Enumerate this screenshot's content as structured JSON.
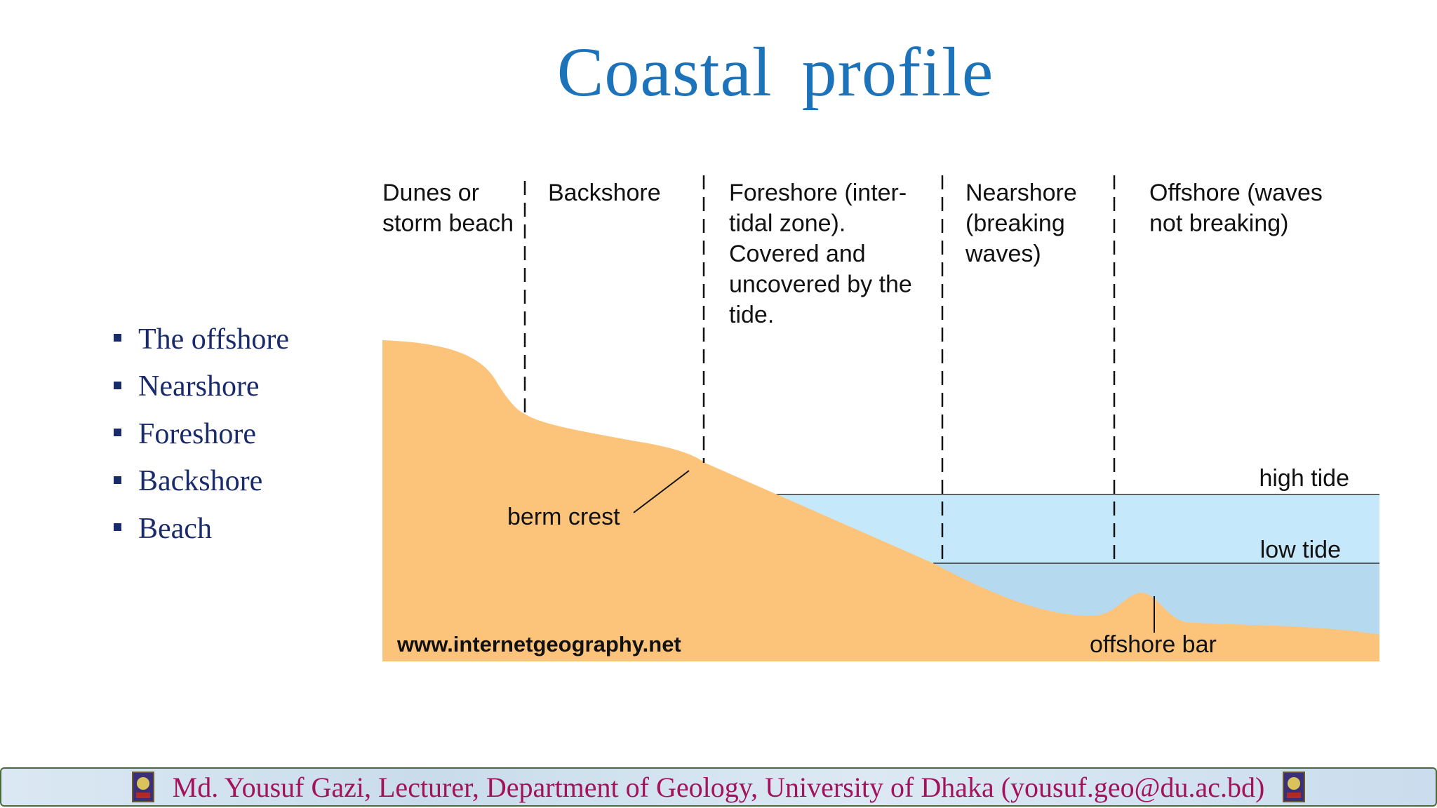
{
  "title": "Coastal  profile",
  "bullets": [
    "The offshore",
    "Nearshore",
    "Foreshore",
    "Backshore",
    "Beach"
  ],
  "diagram": {
    "zones": [
      [
        "Dunes or",
        "storm beach"
      ],
      [
        "Backshore"
      ],
      [
        "Foreshore (inter-",
        "tidal zone).",
        "Covered and",
        "uncovered by the",
        "tide."
      ],
      [
        "Nearshore",
        "(breaking",
        "waves)"
      ],
      [
        "Offshore (waves",
        "not breaking)"
      ]
    ],
    "high_tide_label": "high tide",
    "low_tide_label": "low tide",
    "berm_crest_label": "berm crest",
    "offshore_bar_label": "offshore bar",
    "credit": "www.internetgeography.net",
    "colors": {
      "land": "#fcc47b",
      "upper_water": "#c5e8fb",
      "lower_water": "#b5d9ee"
    }
  },
  "footer": {
    "text": "Md. Yousuf Gazi, Lecturer, Department of Geology, University of Dhaka (yousuf.geo@du.ac.bd)",
    "logo_icon": "university-crest-icon"
  }
}
